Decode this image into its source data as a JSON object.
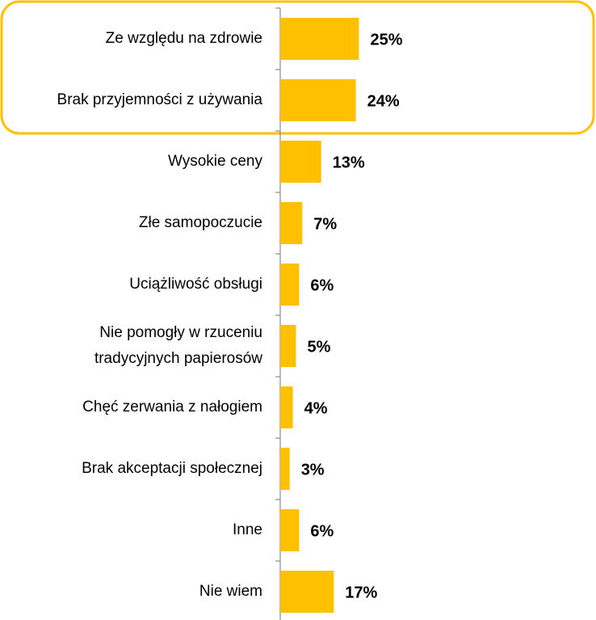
{
  "colors": {
    "bar": "#FFC000",
    "highlight_border": "#FFC000",
    "axis": "#8C8C8C",
    "text": "#000000"
  },
  "chart_data": {
    "type": "bar",
    "orientation": "horizontal",
    "title": "",
    "xlabel": "",
    "ylabel": "",
    "unit": "%",
    "xlim": [
      0,
      100
    ],
    "grid": false,
    "legend": "none",
    "categories": [
      [
        "Ze względu na zdrowie"
      ],
      [
        "Brak przyjemności z używania"
      ],
      [
        "Wysokie ceny"
      ],
      [
        "Złe samopoczucie"
      ],
      [
        "Uciążliwość obsługi"
      ],
      [
        "Nie pomogły w rzuceniu",
        "tradycyjnych papierosów"
      ],
      [
        "Chęć zerwania z nałogiem"
      ],
      [
        "Brak akceptacji społecznej"
      ],
      [
        "Inne"
      ],
      [
        "Nie wiem"
      ]
    ],
    "values": [
      25,
      24,
      13,
      7,
      6,
      5,
      4,
      3,
      6,
      17
    ],
    "value_labels": [
      "25%",
      "24%",
      "13%",
      "7%",
      "6%",
      "5%",
      "4%",
      "3%",
      "6%",
      "17%"
    ],
    "highlighted_categories": [
      0,
      1
    ]
  }
}
